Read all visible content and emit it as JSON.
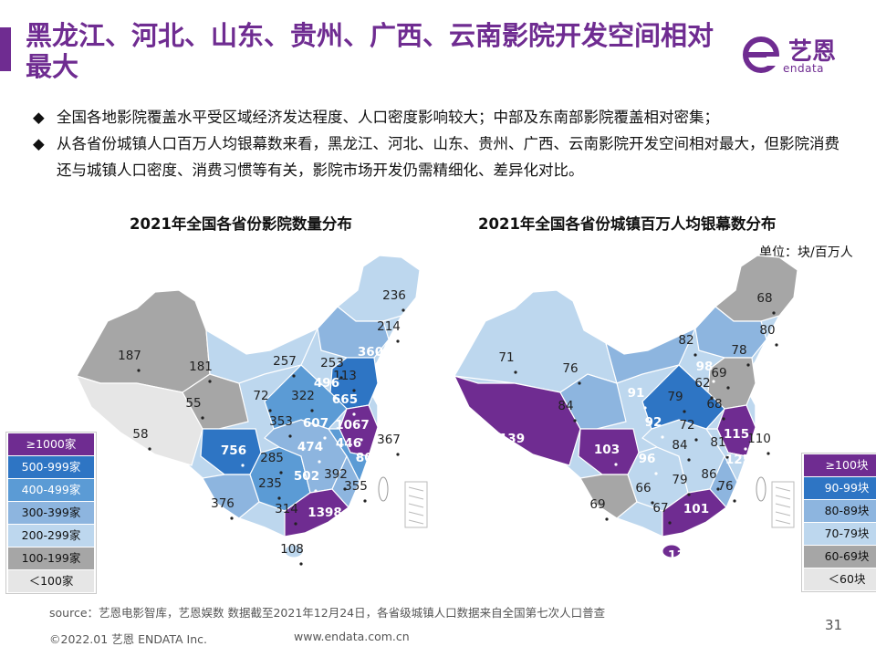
{
  "header": {
    "title": "黑龙江、河北、山东、贵州、广西、云南影院开发空间相对最大",
    "logo_name": "艺恩",
    "logo_en": "endata"
  },
  "bullets": [
    "全国各地影院覆盖水平受区域经济发达程度、人口密度影响较大；中部及东南部影院覆盖相对密集；",
    "从各省份城镇人口百万人均银幕数来看，黑龙江、河北、山东、贵州、广西、云南影院开发空间相对最大，但影院消费还与城镇人口密度、消费习惯等有关，影院市场开发仍需精细化、差异化对比。"
  ],
  "bullet_mark": "◆",
  "colors": {
    "purple": "#6f2c91",
    "dark_blue": "#2e75c4",
    "blue": "#5b9bd5",
    "mid_blue": "#8db5df",
    "light_blue": "#bdd7ee",
    "gray": "#a6a6a6",
    "light_gray": "#e6e6e6"
  },
  "chart_data": [
    {
      "type": "map",
      "title": "2021年全国各省份影院数量分布",
      "legend": [
        {
          "label": "≥1000家",
          "color": "#6f2c91",
          "text_color": "#ffffff"
        },
        {
          "label": "500-999家",
          "color": "#2e75c4",
          "text_color": "#ffffff"
        },
        {
          "label": "400-499家",
          "color": "#5b9bd5",
          "text_color": "#ffffff"
        },
        {
          "label": "300-399家",
          "color": "#8db5df",
          "text_color": "#111111"
        },
        {
          "label": "200-299家",
          "color": "#bdd7ee",
          "text_color": "#111111"
        },
        {
          "label": "100-199家",
          "color": "#a6a6a6",
          "text_color": "#111111"
        },
        {
          "label": "＜100家",
          "color": "#e6e6e6",
          "text_color": "#111111"
        }
      ],
      "labels": [
        "236",
        "214",
        "360",
        "187",
        "181",
        "257",
        "253",
        "113",
        "496",
        "322",
        "665",
        "72",
        "55",
        "353",
        "607",
        "1067",
        "367",
        "58",
        "756",
        "474",
        "446",
        "802",
        "285",
        "502",
        "392",
        "235",
        "355",
        "376",
        "314",
        "1398",
        "108"
      ]
    },
    {
      "type": "map",
      "title": "2021年全国各省份城镇百万人均银幕数分布",
      "unit": "单位：块/百万人",
      "legend": [
        {
          "label": "≥100块",
          "color": "#6f2c91",
          "text_color": "#ffffff"
        },
        {
          "label": "90-99块",
          "color": "#2e75c4",
          "text_color": "#ffffff"
        },
        {
          "label": "80-89块",
          "color": "#8db5df",
          "text_color": "#111111"
        },
        {
          "label": "70-79块",
          "color": "#bdd7ee",
          "text_color": "#111111"
        },
        {
          "label": "60-69块",
          "color": "#a6a6a6",
          "text_color": "#111111"
        },
        {
          "label": "＜60块",
          "color": "#e6e6e6",
          "text_color": "#111111"
        }
      ],
      "labels": [
        "68",
        "80",
        "82",
        "78",
        "71",
        "76",
        "98",
        "69",
        "91",
        "79",
        "62",
        "84",
        "68",
        "92",
        "72",
        "139",
        "103",
        "84",
        "81",
        "115",
        "110",
        "96",
        "125",
        "79",
        "86",
        "76",
        "69",
        "66",
        "67",
        "101",
        "114"
      ]
    }
  ],
  "footer": {
    "source": "source：艺恩电影智库，艺恩娱数    数据截至2021年12月24日，各省级城镇人口数据来自全国第七次人口普查",
    "copyright": "©2022.01 艺恩 ENDATA Inc.",
    "website": "www.endata.com.cn",
    "page": "31"
  }
}
